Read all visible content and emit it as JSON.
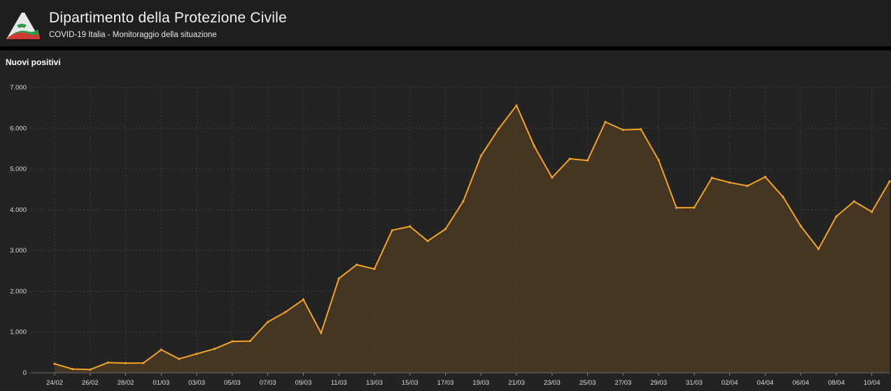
{
  "header": {
    "title": "Dipartimento della Protezione Civile",
    "subtitle": "COVID-19 Italia - Monitoraggio della situazione"
  },
  "panel": {
    "title": "Nuovi positivi"
  },
  "colors": {
    "line": "#f2a324",
    "area": "#4a3a22",
    "grid": "#3b3b3b",
    "tick_text": "#d9d9d9",
    "panel_bg": "#232323",
    "header_bg": "#1f1f1f"
  },
  "chart_data": {
    "type": "area",
    "title": "Nuovi positivi",
    "xlabel": "",
    "ylabel": "",
    "ylim": [
      0,
      7000
    ],
    "y_ticks": [
      0,
      1000,
      2000,
      3000,
      4000,
      5000,
      6000,
      7000
    ],
    "y_tick_labels": [
      "0",
      "1.000",
      "2.000",
      "3.000",
      "4.000",
      "5.000",
      "6.000",
      "7.000"
    ],
    "x_tick_labels": [
      "24/02",
      "26/02",
      "28/02",
      "01/03",
      "03/03",
      "05/03",
      "07/03",
      "09/03",
      "11/03",
      "13/03",
      "15/03",
      "17/03",
      "19/03",
      "21/03",
      "23/03",
      "25/03",
      "27/03",
      "29/03",
      "31/03",
      "02/04",
      "04/04",
      "06/04",
      "08/04",
      "10/04"
    ],
    "grid": true,
    "x": [
      "24/02",
      "25/02",
      "26/02",
      "27/02",
      "28/02",
      "29/02",
      "01/03",
      "02/03",
      "03/03",
      "04/03",
      "05/03",
      "06/03",
      "07/03",
      "08/03",
      "09/03",
      "10/03",
      "11/03",
      "12/03",
      "13/03",
      "14/03",
      "15/03",
      "16/03",
      "17/03",
      "18/03",
      "19/03",
      "20/03",
      "21/03",
      "22/03",
      "23/03",
      "24/03",
      "25/03",
      "26/03",
      "27/03",
      "28/03",
      "29/03",
      "30/03",
      "31/03",
      "01/04",
      "02/04",
      "03/04",
      "04/04",
      "05/04",
      "06/04",
      "07/04",
      "08/04",
      "09/04",
      "10/04",
      "11/04"
    ],
    "series": [
      {
        "values": [
          221,
          93,
          78,
          250,
          238,
          240,
          566,
          342,
          466,
          587,
          769,
          778,
          1247,
          1492,
          1797,
          977,
          2313,
          2651,
          2547,
          3497,
          3590,
          3233,
          3526,
          4207,
          5322,
          5986,
          6557,
          5560,
          4789,
          5249,
          5210,
          6153,
          5959,
          5974,
          5217,
          4050,
          4053,
          4782,
          4668,
          4585,
          4805,
          4316,
          3599,
          3039,
          3836,
          4204,
          3951,
          4694
        ]
      }
    ]
  }
}
